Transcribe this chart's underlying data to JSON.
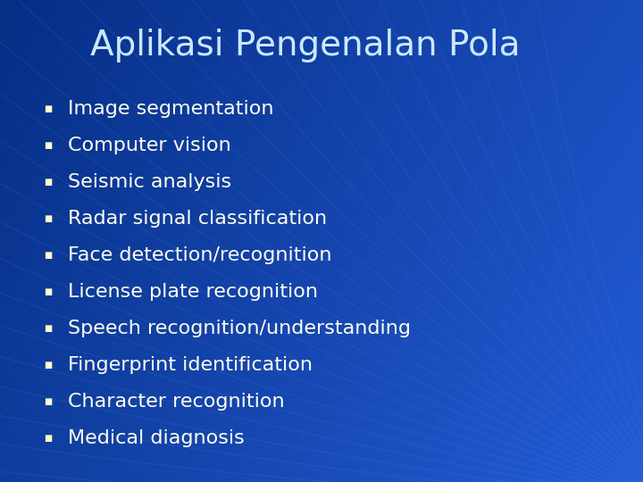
{
  "title": "Aplikasi Pengenalan Pola",
  "title_color": "#cce8ff",
  "title_fontsize": 28,
  "bullet_items": [
    "Image segmentation",
    "Computer vision",
    "Seismic analysis",
    "Radar signal classification",
    "Face detection/recognition",
    "License plate recognition",
    "Speech recognition/understanding",
    "Fingerprint identification",
    "Character recognition",
    "Medical diagnosis"
  ],
  "bullet_color": "#ffffee",
  "bullet_fontsize": 16,
  "bullet_marker_color": "#ffffcc",
  "bg_color_dark": "#003399",
  "bg_color_mid": "#0047bb",
  "bg_color_light": "#1266d4",
  "line_color": "#4488dd",
  "fig_width": 7.2,
  "fig_height": 5.4
}
